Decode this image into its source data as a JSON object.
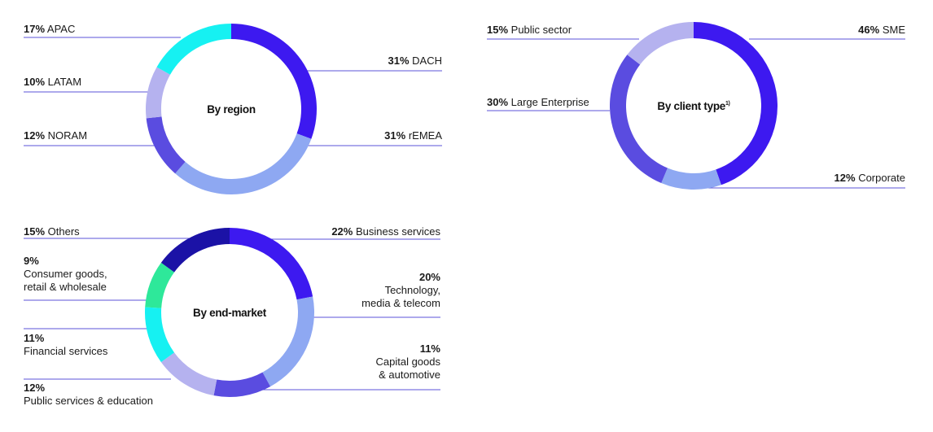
{
  "colors": {
    "dark_navy": "#1b12a6",
    "violet": "#3d19f0",
    "indigo": "#5a4ce0",
    "blue_light": "#8ea8f2",
    "lavender": "#b5b2ef",
    "cyan": "#16f1f2",
    "green": "#2ee89a",
    "leader": "#5b53d8"
  },
  "chart_data": [
    {
      "type": "pie",
      "title": "By region",
      "slices": [
        {
          "name": "DACH",
          "value": 31,
          "pct_label": "31%",
          "label": "DACH",
          "color": "#3d19f0"
        },
        {
          "name": "rEMEA",
          "value": 31,
          "pct_label": "31%",
          "label": "rEMEA",
          "color": "#8ea8f2"
        },
        {
          "name": "NORAM",
          "value": 12,
          "pct_label": "12%",
          "label": "NORAM",
          "color": "#5a4ce0"
        },
        {
          "name": "LATAM",
          "value": 10,
          "pct_label": "10%",
          "label": "LATAM",
          "color": "#b5b2ef"
        },
        {
          "name": "APAC",
          "value": 17,
          "pct_label": "17%",
          "label": "APAC",
          "color": "#16f1f2"
        }
      ]
    },
    {
      "type": "pie",
      "title": "By client type",
      "title_sup": "1)",
      "slices": [
        {
          "name": "SME",
          "value": 46,
          "pct_label": "46%",
          "label": "SME",
          "color": "#3d19f0"
        },
        {
          "name": "Corporate",
          "value": 12,
          "pct_label": "12%",
          "label": "Corporate",
          "color": "#8ea8f2"
        },
        {
          "name": "Large Enterprise",
          "value": 30,
          "pct_label": "30%",
          "label": "Large Enterprise",
          "color": "#5a4ce0"
        },
        {
          "name": "Public sector",
          "value": 15,
          "pct_label": "15%",
          "label": "Public sector",
          "color": "#b5b2ef"
        }
      ]
    },
    {
      "type": "pie",
      "title": "By end-market",
      "slices": [
        {
          "name": "Business services",
          "value": 22,
          "pct_label": "22%",
          "label": [
            "Business services"
          ],
          "color": "#3d19f0"
        },
        {
          "name": "Technology, media & telecom",
          "value": 20,
          "pct_label": "20%",
          "label": [
            "Technology,",
            "media & telecom"
          ],
          "color": "#8ea8f2"
        },
        {
          "name": "Capital goods & automotive",
          "value": 11,
          "pct_label": "11%",
          "label": [
            "Capital goods",
            "& automotive"
          ],
          "color": "#5a4ce0"
        },
        {
          "name": "Public services & education",
          "value": 12,
          "pct_label": "12%",
          "label": [
            "Public services & education"
          ],
          "color": "#b5b2ef"
        },
        {
          "name": "Financial services",
          "value": 11,
          "pct_label": "11%",
          "label": [
            "Financial services"
          ],
          "color": "#16f1f2"
        },
        {
          "name": "Consumer goods, retail & wholesale",
          "value": 9,
          "pct_label": "9%",
          "label": [
            "Consumer goods,",
            "retail & wholesale"
          ],
          "color": "#2ee89a"
        },
        {
          "name": "Others",
          "value": 15,
          "pct_label": "15%",
          "label": [
            "Others"
          ],
          "color": "#1b12a6"
        }
      ]
    }
  ]
}
